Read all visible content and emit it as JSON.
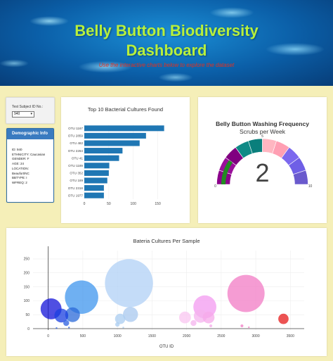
{
  "header": {
    "title_line1": "Belly Button Biodiversity",
    "title_line2": "Dashboard",
    "subtitle": "Use the interactive charts below to explore the dataset"
  },
  "selector": {
    "label": "Test Subject ID No.:",
    "value": "940"
  },
  "demographics": {
    "title": "Demographic Info",
    "rows": [
      "ID: 940",
      "ETHNICITY: Caucasian",
      "GENDER: F",
      "AGE: 24",
      "LOCATION: Beaufort/NC",
      "BBTYPE: I",
      "WFREQ: 2"
    ]
  },
  "chart_data": [
    {
      "type": "bar",
      "orientation": "horizontal",
      "title": "Top 10 Bacterial Cultures Found",
      "categories": [
        "OTU 1167",
        "OTU 2859",
        "OTU 482",
        "OTU 2264",
        "OTU 41",
        "OTU 1189",
        "OTU 352",
        "OTU 189",
        "OTU 2318",
        "OTU 1977"
      ],
      "values": [
        163,
        126,
        113,
        78,
        71,
        51,
        50,
        47,
        40,
        40
      ],
      "xlim": [
        0,
        175
      ],
      "xticks": [
        0,
        50,
        100,
        150
      ],
      "color": "#1f77b4"
    },
    {
      "type": "gauge",
      "title": "Belly Button Washing Frequency",
      "subtitle": "Scrubs per Week",
      "value": 2,
      "range": [
        0,
        10
      ],
      "tick_labels": [
        "0",
        "5",
        "10"
      ],
      "steps_colors": [
        "#8b008b",
        "#9a0f9a",
        "#800080",
        "#0f8a86",
        "#0a7f7c",
        "#ffb6c1",
        "#ff9fb3",
        "#7b68ee",
        "#6f5fe6",
        "#6a5acd"
      ],
      "bar_color": "#228b22"
    },
    {
      "type": "scatter",
      "title": "Bateria Cultures Per Sample",
      "xlabel": "OTU ID",
      "xlim": [
        -220,
        3700
      ],
      "ylim": [
        -5,
        280
      ],
      "xticks": [
        0,
        500,
        1000,
        1500,
        2000,
        2500,
        3000,
        3500
      ],
      "yticks": [
        0,
        50,
        100,
        150,
        200,
        250
      ],
      "points": [
        {
          "x": 41,
          "y": 71,
          "color": "#1414d8"
        },
        {
          "x": 189,
          "y": 47,
          "color": "#1a3fe0"
        },
        {
          "x": 352,
          "y": 50,
          "color": "#2b6ad8"
        },
        {
          "x": 482,
          "y": 113,
          "color": "#3f95ee"
        },
        {
          "x": 260,
          "y": 20,
          "color": "#2b5fe0"
        },
        {
          "x": 300,
          "y": 4,
          "color": "#2b5fe0"
        },
        {
          "x": 120,
          "y": 2,
          "color": "#2b5fe0"
        },
        {
          "x": 1167,
          "y": 163,
          "color": "#b0d0f5"
        },
        {
          "x": 1189,
          "y": 51,
          "color": "#a8c8ef"
        },
        {
          "x": 1000,
          "y": 15,
          "color": "#aaccf0"
        },
        {
          "x": 1040,
          "y": 35,
          "color": "#aaccf0"
        },
        {
          "x": 1085,
          "y": 4,
          "color": "#aaccf0"
        },
        {
          "x": 1977,
          "y": 40,
          "color": "#f9c6f0"
        },
        {
          "x": 2200,
          "y": 45,
          "color": "#f4b3ee"
        },
        {
          "x": 2264,
          "y": 78,
          "color": "#f39af0"
        },
        {
          "x": 2318,
          "y": 40,
          "color": "#f5a9e9"
        },
        {
          "x": 2100,
          "y": 20,
          "color": "#f4b3ee"
        },
        {
          "x": 2350,
          "y": 10,
          "color": "#f5a9e9"
        },
        {
          "x": 2859,
          "y": 126,
          "color": "#f27bc4"
        },
        {
          "x": 2800,
          "y": 10,
          "color": "#f27bc4"
        },
        {
          "x": 2900,
          "y": 5,
          "color": "#f27bc4"
        },
        {
          "x": 3400,
          "y": 35,
          "color": "#e61a1a"
        }
      ]
    }
  ]
}
